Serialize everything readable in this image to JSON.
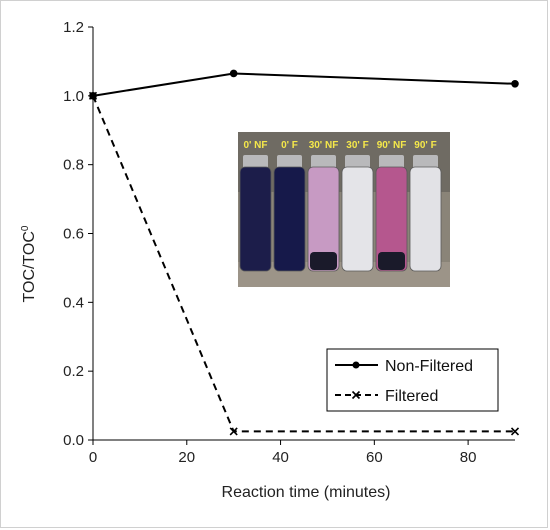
{
  "chart_data": {
    "type": "line",
    "xlabel": "Reaction time (minutes)",
    "ylabel": "TOC/TOC",
    "ylabel_superscript": "0",
    "xlim": [
      0,
      90
    ],
    "ylim": [
      0,
      1.2
    ],
    "xticks": [
      0,
      20,
      40,
      60,
      80
    ],
    "yticks": [
      0.0,
      0.2,
      0.4,
      0.6,
      0.8,
      1.0,
      1.2
    ],
    "ytick_labels": [
      "0.0",
      "0.2",
      "0.4",
      "0.6",
      "0.8",
      "1.0",
      "1.2"
    ],
    "grid": false,
    "legend_position": "bottom-right",
    "series": [
      {
        "name": "Non-Filtered",
        "x": [
          0,
          30,
          90
        ],
        "y": [
          1.0,
          1.065,
          1.035
        ],
        "line": "solid",
        "marker": "circle",
        "color": "#000000"
      },
      {
        "name": "Filtered",
        "x": [
          0,
          30,
          90
        ],
        "y": [
          1.0,
          0.025,
          0.025
        ],
        "line": "dashed",
        "marker": "x",
        "color": "#000000"
      }
    ],
    "inset_photo": {
      "labels": [
        "0' NF",
        "0' F",
        "30' NF",
        "30' F",
        "90' NF",
        "90' F"
      ],
      "vial_colors": [
        "#1c1d4a",
        "#16194a",
        "#c79ac3",
        "#e4e4e8",
        "#b5578e",
        "#e2e2e6"
      ]
    }
  }
}
